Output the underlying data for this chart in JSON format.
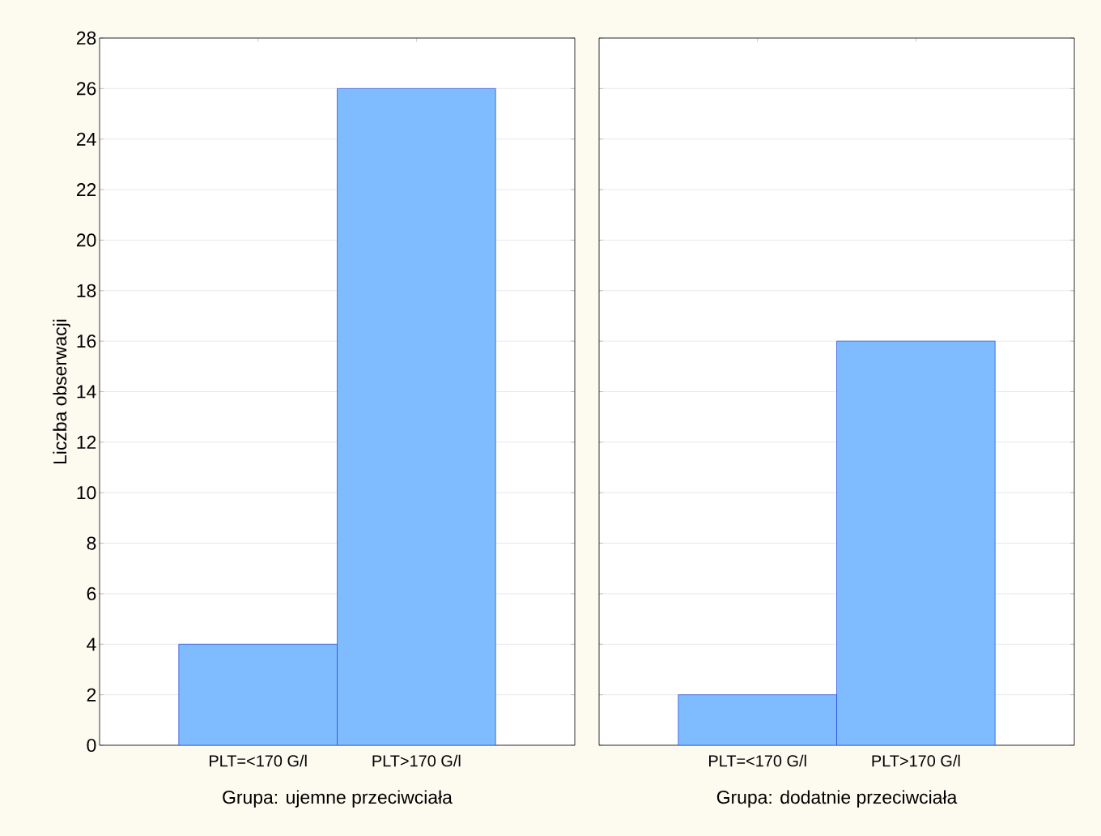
{
  "chart_data": [
    {
      "type": "bar",
      "xlabel": "Grupa: ujemne przeciwciała",
      "ylabel": "Liczba obserwacji",
      "categories": [
        "PLT=<170 G/l",
        "PLT>170 G/l"
      ],
      "values": [
        4,
        26
      ],
      "color": "#7fbcff",
      "ylim": [
        0,
        28
      ],
      "yticks": [
        0,
        2,
        4,
        6,
        8,
        10,
        12,
        14,
        16,
        18,
        20,
        22,
        24,
        26,
        28
      ],
      "grid": "y"
    },
    {
      "type": "bar",
      "xlabel": "Grupa: dodatnie przeciwciała",
      "categories": [
        "PLT=<170 G/l",
        "PLT>170 G/l"
      ],
      "values": [
        2,
        16
      ],
      "color": "#7fbcff",
      "ylim": [
        0,
        28
      ],
      "yticks": [
        0,
        2,
        4,
        6,
        8,
        10,
        12,
        14,
        16,
        18,
        20,
        22,
        24,
        26,
        28
      ],
      "grid": "y",
      "tick_labels": "x"
    }
  ]
}
